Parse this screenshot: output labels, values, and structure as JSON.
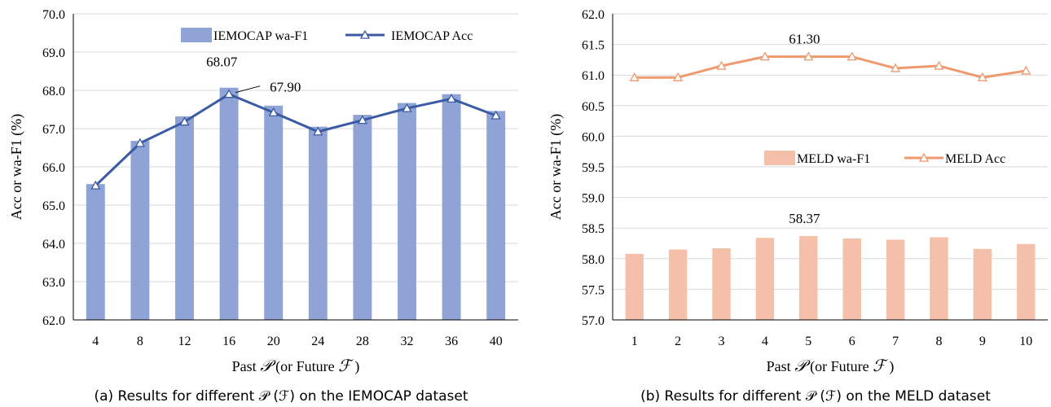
{
  "chart_data": [
    {
      "type": "bar",
      "categories": [
        "4",
        "8",
        "12",
        "16",
        "20",
        "24",
        "28",
        "32",
        "36",
        "40"
      ],
      "series": [
        {
          "name": "IEMOCAP wa-F1",
          "type": "bar",
          "color": "#8FA3D6",
          "values": [
            65.55,
            66.68,
            67.32,
            68.07,
            67.6,
            67.05,
            67.36,
            67.67,
            67.9,
            67.46
          ]
        },
        {
          "name": "IEMOCAP Acc",
          "type": "line",
          "color": "#3C5BA5",
          "values": [
            65.51,
            66.62,
            67.18,
            67.9,
            67.42,
            66.92,
            67.22,
            67.53,
            67.78,
            67.34
          ]
        }
      ],
      "ylim": [
        62.0,
        70.0
      ],
      "ytick_step": 1.0,
      "ytick_decimals": 1,
      "xlabel_prefix": "Past ",
      "xlabel_mid": " (or Future ",
      "xlabel_suffix": " )",
      "xlabel_sym1": "𝒫",
      "xlabel_sym2": "ℱ",
      "ylabel": "Acc or wa-F1 (%)",
      "legend_position": "top-right",
      "annotations": [
        {
          "text": "68.07",
          "category": "16",
          "series": "IEMOCAP wa-F1"
        },
        {
          "text": "67.90",
          "category": "16",
          "series": "IEMOCAP Acc"
        }
      ],
      "caption": "(a) Results for different 𝒫 (ℱ) on the IEMOCAP dataset",
      "grid": true
    },
    {
      "type": "bar",
      "categories": [
        "1",
        "2",
        "3",
        "4",
        "5",
        "6",
        "7",
        "8",
        "9",
        "10"
      ],
      "series": [
        {
          "name": "MELD wa-F1",
          "type": "bar",
          "color": "#F4C0AA",
          "values": [
            58.08,
            58.15,
            58.17,
            58.34,
            58.37,
            58.33,
            58.31,
            58.35,
            58.16,
            58.24
          ]
        },
        {
          "name": "MELD Acc",
          "type": "line",
          "color": "#EE9A6F",
          "values": [
            60.96,
            60.96,
            61.15,
            61.3,
            61.3,
            61.3,
            61.11,
            61.15,
            60.96,
            61.07
          ]
        }
      ],
      "ylim": [
        57.0,
        62.0
      ],
      "ytick_step": 0.5,
      "ytick_decimals": 1,
      "xlabel_prefix": "Past ",
      "xlabel_mid": " (or Future ",
      "xlabel_suffix": " )",
      "xlabel_sym1": "𝒫",
      "xlabel_sym2": "ℱ",
      "ylabel": "Acc or wa-F1 (%)",
      "legend_position": "center-right",
      "annotations": [
        {
          "text": "61.30",
          "category": "5",
          "series": "MELD Acc"
        },
        {
          "text": "58.37",
          "category": "5",
          "series": "MELD wa-F1"
        }
      ],
      "caption": "(b) Results for different 𝒫 (ℱ) on the MELD dataset",
      "grid": true
    }
  ]
}
